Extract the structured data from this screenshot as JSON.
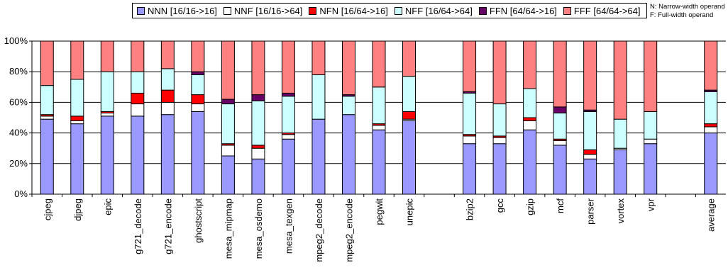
{
  "chart_data": {
    "type": "bar",
    "stacked": true,
    "categories": [
      "cjpeg",
      "djpeg",
      "epic",
      "g721_decode",
      "g721_encode",
      "ghostscript",
      "mesa_mipmap",
      "mesa_osdemo",
      "mesa_texgen",
      "mpeg2_decode",
      "mpeg2_encode",
      "pegwit",
      "unepic",
      "",
      "bzip2",
      "gcc",
      "gzip",
      "mcf",
      "parser",
      "vortex",
      "vpr",
      "",
      "average"
    ],
    "series": [
      {
        "name": "NNN [16/16->16]",
        "color": "#9999ff",
        "values": [
          49,
          46,
          51,
          51,
          52,
          54,
          25,
          23,
          36,
          49,
          52,
          42,
          48,
          null,
          33,
          33,
          42,
          32,
          23,
          29,
          33,
          null,
          40
        ]
      },
      {
        "name": "NNF [16/16->64]",
        "color": "#ffffff",
        "values": [
          2,
          2,
          2,
          8,
          8,
          5,
          7,
          7,
          3,
          0,
          0,
          3,
          1,
          null,
          5,
          4,
          6,
          3,
          3,
          1,
          3,
          null,
          4
        ]
      },
      {
        "name": "NFN [16/64->16]",
        "color": "#ff0000",
        "values": [
          1,
          3,
          1,
          7,
          8,
          6,
          1,
          2,
          1,
          0,
          0,
          1,
          5,
          null,
          1,
          1,
          2,
          1,
          3,
          0,
          0,
          null,
          2
        ]
      },
      {
        "name": "NFF [16/64->64]",
        "color": "#ccffff",
        "values": [
          19,
          24,
          26,
          14,
          14,
          13,
          26,
          29,
          24,
          29,
          12,
          24,
          23,
          null,
          27,
          21,
          19,
          17,
          25,
          19,
          18,
          null,
          21
        ]
      },
      {
        "name": "FFN [64/64->16]",
        "color": "#660066",
        "values": [
          0,
          0,
          0,
          0,
          0,
          2,
          3,
          4,
          2,
          0,
          1,
          0,
          0,
          null,
          1,
          0,
          0,
          4,
          1,
          0,
          0,
          null,
          1
        ]
      },
      {
        "name": "FFF [64/64->64]",
        "color": "#ff8080",
        "values": [
          29,
          25,
          20,
          20,
          18,
          20,
          38,
          35,
          34,
          22,
          35,
          30,
          23,
          null,
          33,
          41,
          31,
          43,
          45,
          51,
          46,
          null,
          32
        ]
      }
    ],
    "ylim": [
      0,
      100
    ],
    "yticks": [
      "0%",
      "20%",
      "40%",
      "60%",
      "80%",
      "100%"
    ],
    "grid": true,
    "legend_position": "top",
    "notes": [
      "N: Narrow-width operand",
      "F: Full-width operand"
    ]
  }
}
